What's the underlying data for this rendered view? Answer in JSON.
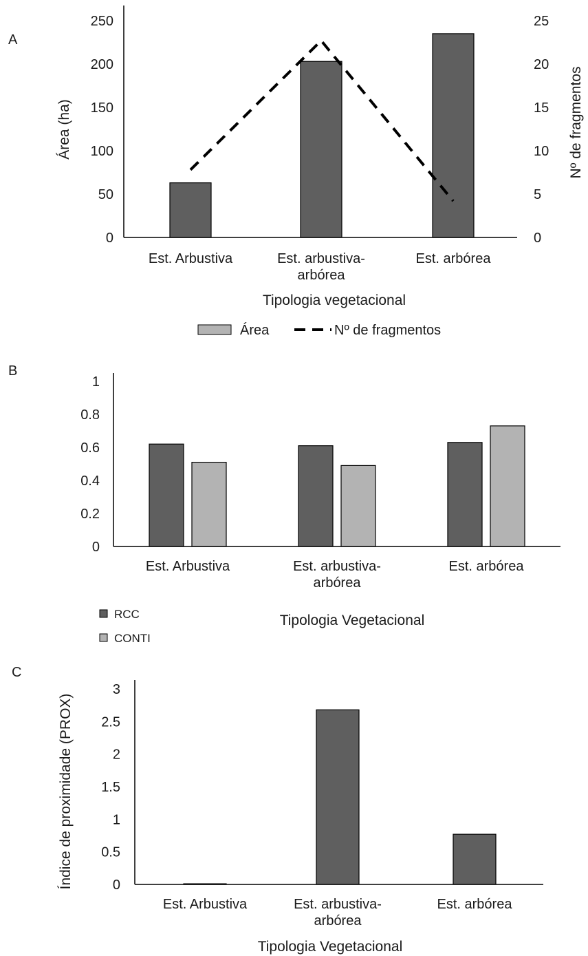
{
  "colors": {
    "dark_bar": "#5f5f5f",
    "light_bar": "#b3b3b3",
    "bar_stroke": "#000000",
    "line": "#000000"
  },
  "chart_data": [
    {
      "panel": "A",
      "type": "bar",
      "categories": [
        "Est. Arbustiva",
        "Est. arbustiva-arbórea",
        "Est. arbórea"
      ],
      "category_lines": [
        [
          "Est. Arbustiva"
        ],
        [
          "Est. arbustiva-",
          "arbórea"
        ],
        [
          "Est. arbórea"
        ]
      ],
      "xlabel": "Tipologia vegetacional",
      "ylabel": "Área (ha)",
      "y2label": "Nº de fragmentos",
      "ylim": [
        0,
        250
      ],
      "y2lim": [
        0,
        25
      ],
      "yticks": [
        "0",
        "50",
        "100",
        "150",
        "200",
        "250"
      ],
      "y2ticks": [
        "0",
        "5",
        "10",
        "15",
        "20",
        "25"
      ],
      "series": [
        {
          "name": "Área",
          "type": "bar",
          "axis": "left",
          "values": [
            63,
            203,
            235
          ]
        },
        {
          "name": "Nº de fragmentos",
          "type": "line",
          "axis": "right",
          "style": "dashed",
          "values": [
            7.8,
            22.7,
            4.2
          ]
        }
      ],
      "legend": {
        "position": "bottom",
        "entries": [
          "Área",
          "Nº de fragmentos"
        ]
      }
    },
    {
      "panel": "B",
      "type": "bar",
      "categories": [
        "Est. Arbustiva",
        "Est. arbustiva-arbórea",
        "Est. arbórea"
      ],
      "category_lines": [
        [
          "Est. Arbustiva"
        ],
        [
          "Est. arbustiva-",
          "arbórea"
        ],
        [
          "Est. arbórea"
        ]
      ],
      "xlabel": "Tipologia Vegetacional",
      "ylabel": "",
      "ylim": [
        0,
        1
      ],
      "yticks": [
        "0",
        "0.2",
        "0.4",
        "0.6",
        "0.8",
        "1"
      ],
      "series": [
        {
          "name": "RCC",
          "values": [
            0.62,
            0.61,
            0.63
          ]
        },
        {
          "name": "CONTI",
          "values": [
            0.51,
            0.49,
            0.73
          ]
        }
      ],
      "legend": {
        "position": "bottom-left",
        "entries": [
          "RCC",
          "CONTI"
        ]
      }
    },
    {
      "panel": "C",
      "type": "bar",
      "categories": [
        "Est. Arbustiva",
        "Est. arbustiva-arbórea",
        "Est. arbórea"
      ],
      "category_lines": [
        [
          "Est. Arbustiva"
        ],
        [
          "Est. arbustiva-",
          "arbórea"
        ],
        [
          "Est. arbórea"
        ]
      ],
      "xlabel": "Tipologia Vegetacional",
      "ylabel": "Índice de proximidade (PROX)",
      "ylim": [
        0,
        3
      ],
      "yticks": [
        "0",
        "0.5",
        "1",
        "1.5",
        "2",
        "2.5",
        "3"
      ],
      "series": [
        {
          "values": [
            0.01,
            2.68,
            0.77
          ]
        }
      ]
    }
  ]
}
